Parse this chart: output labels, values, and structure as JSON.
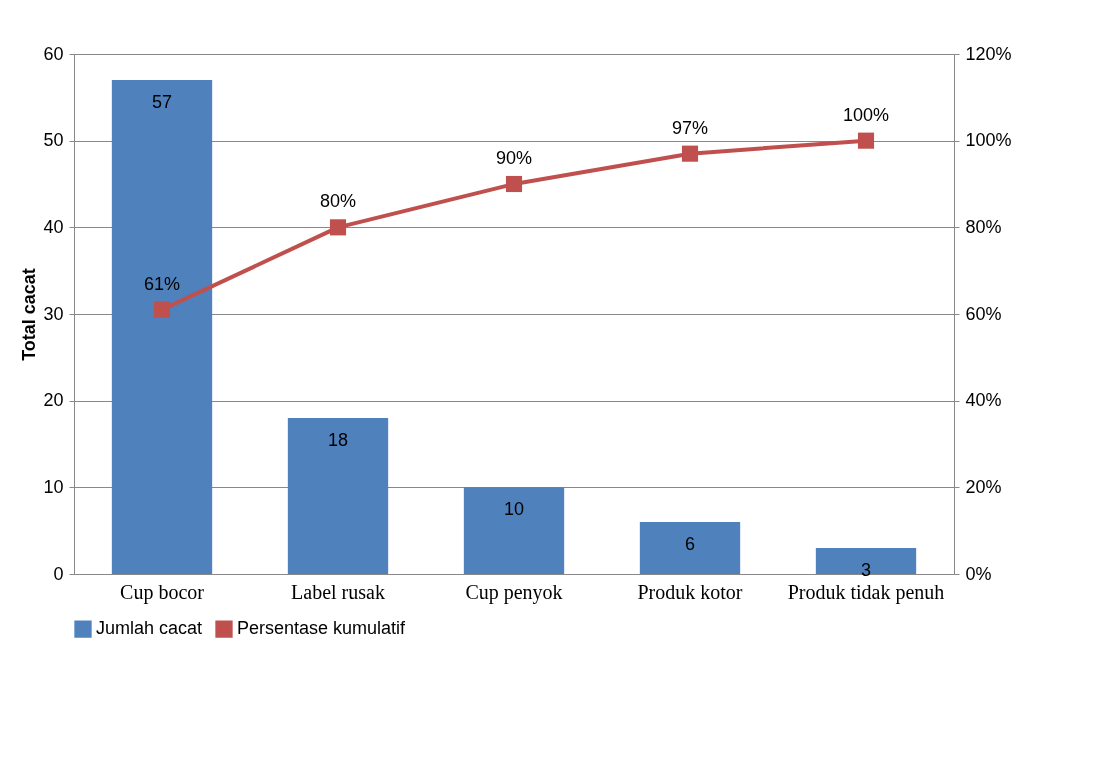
{
  "chart_data": {
    "type": "bar",
    "ylabel": "Total cacat",
    "categories": [
      "Cup bocor",
      "Label rusak",
      "Cup penyok",
      "Produk kotor",
      "Produk tidak penuh"
    ],
    "series": [
      {
        "name": "Jumlah cacat",
        "color": "#4f81bd",
        "values": [
          57,
          18,
          10,
          6,
          3
        ],
        "value_labels": [
          "57",
          "18",
          "10",
          "6",
          "3"
        ]
      },
      {
        "name": "Persentase kumulatif",
        "type": "line",
        "axis": "y2",
        "color": "#c0504d",
        "marker": "square",
        "values": [
          61,
          80,
          90,
          97,
          100
        ],
        "value_labels": [
          "61%",
          "80%",
          "90%",
          "97%",
          "100%"
        ]
      }
    ],
    "ylim": [
      0,
      60
    ],
    "yticks": [
      0,
      10,
      20,
      30,
      40,
      50,
      60
    ],
    "y2lim": [
      0,
      120
    ],
    "y2ticks": [
      {
        "value": 0,
        "label": "0%"
      },
      {
        "value": 20,
        "label": "20%"
      },
      {
        "value": 40,
        "label": "40%"
      },
      {
        "value": 60,
        "label": "60%"
      },
      {
        "value": 80,
        "label": "80%"
      },
      {
        "value": 100,
        "label": "100%"
      },
      {
        "value": 120,
        "label": "120%"
      }
    ],
    "grid": "y",
    "legend": "bottom"
  }
}
